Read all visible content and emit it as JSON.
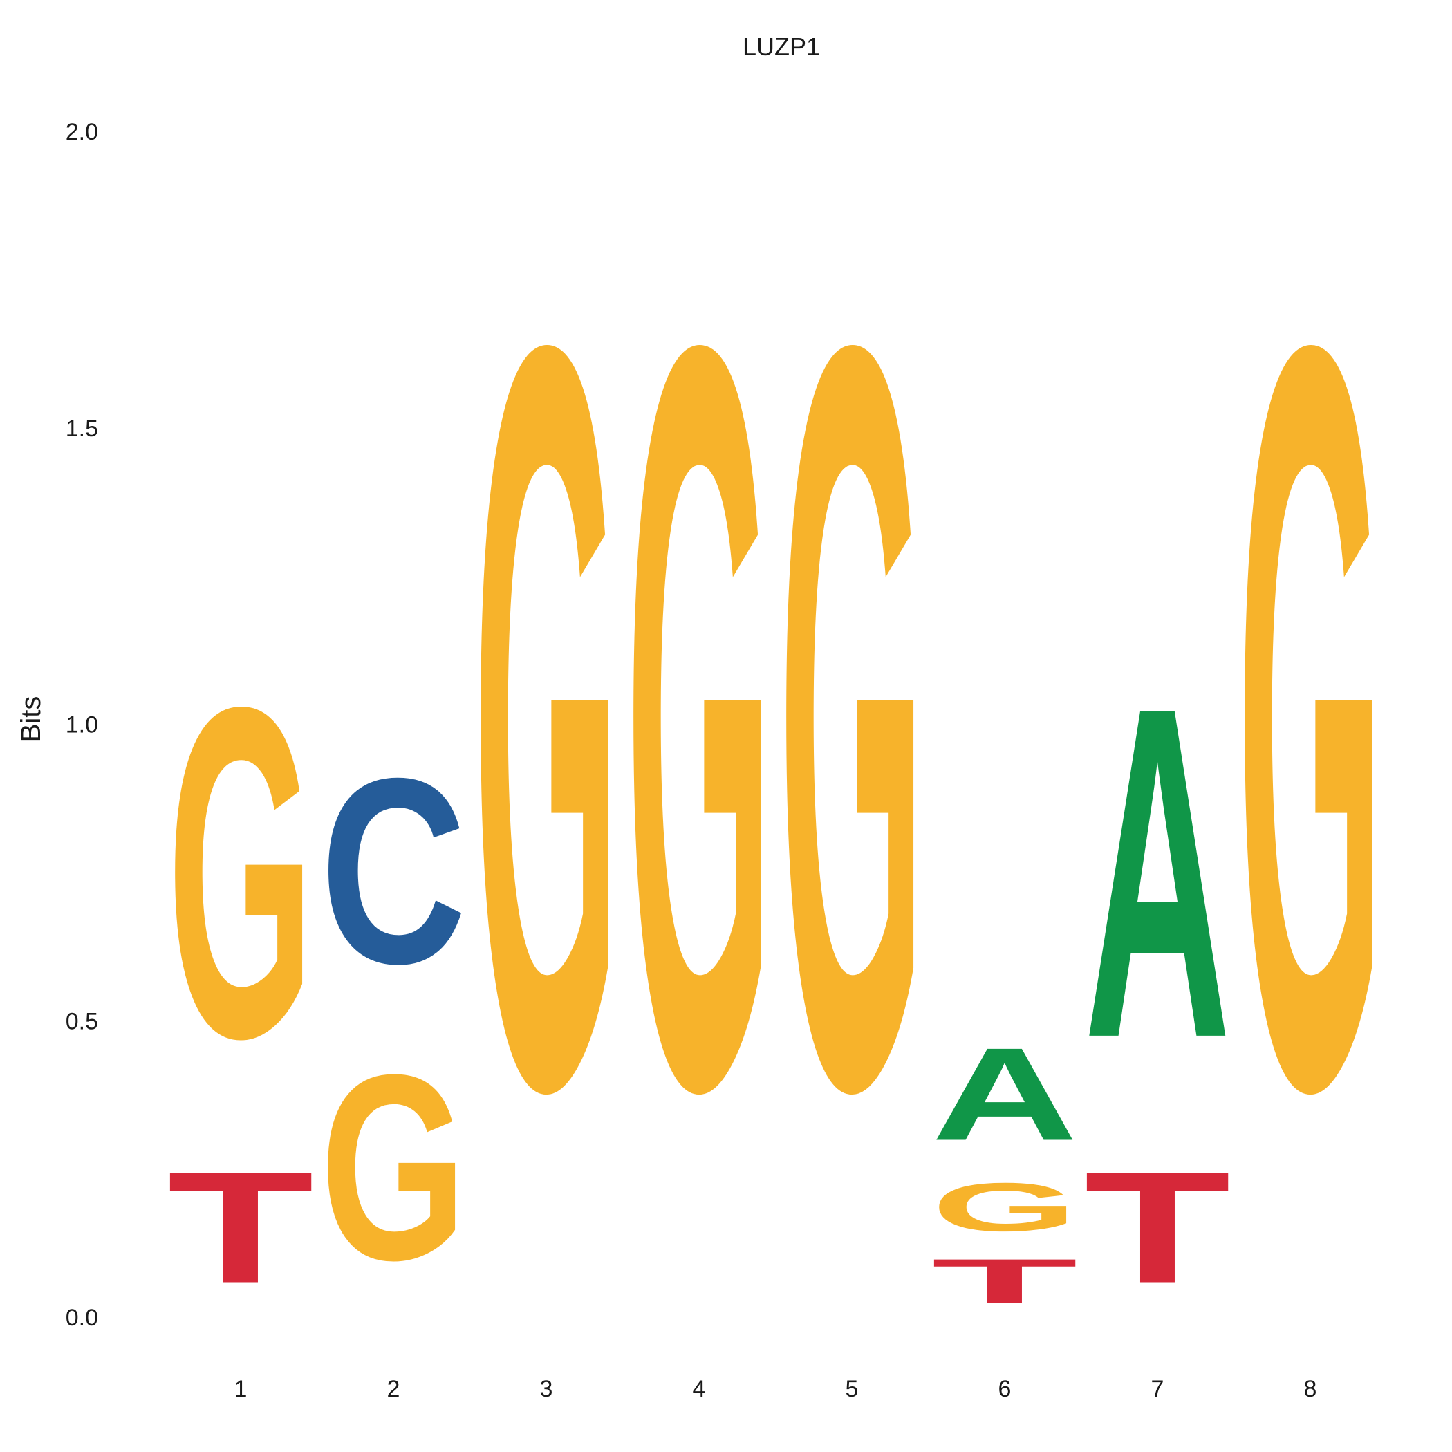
{
  "chart_data": {
    "type": "sequence-logo",
    "title": "LUZP1",
    "ylabel": "Bits",
    "xlabel": "",
    "ylim": [
      0,
      2
    ],
    "y_ticks": [
      "0.0",
      "0.5",
      "1.0",
      "1.5",
      "2.0"
    ],
    "y_tick_values": [
      0,
      0.5,
      1.0,
      1.5,
      2.0
    ],
    "grid": false,
    "colors": {
      "A": "#109648",
      "C": "#255C99",
      "G": "#F7B32B",
      "T": "#D62839"
    },
    "positions": [
      {
        "label": "1",
        "stack": [
          {
            "letter": "T",
            "bits": 0.3
          },
          {
            "letter": "G",
            "bits": 0.89
          }
        ]
      },
      {
        "label": "2",
        "stack": [
          {
            "letter": "G",
            "bits": 0.5
          },
          {
            "letter": "C",
            "bits": 0.5
          }
        ]
      },
      {
        "label": "3",
        "stack": [
          {
            "letter": "G",
            "bits": 2.0
          }
        ]
      },
      {
        "label": "4",
        "stack": [
          {
            "letter": "G",
            "bits": 2.0
          }
        ]
      },
      {
        "label": "5",
        "stack": [
          {
            "letter": "G",
            "bits": 2.0
          }
        ]
      },
      {
        "label": "6",
        "stack": [
          {
            "letter": "T",
            "bits": 0.12
          },
          {
            "letter": "G",
            "bits": 0.13
          },
          {
            "letter": "A",
            "bits": 0.25
          }
        ]
      },
      {
        "label": "7",
        "stack": [
          {
            "letter": "T",
            "bits": 0.3
          },
          {
            "letter": "A",
            "bits": 0.89
          }
        ]
      },
      {
        "label": "8",
        "stack": [
          {
            "letter": "G",
            "bits": 2.0
          }
        ]
      }
    ]
  }
}
